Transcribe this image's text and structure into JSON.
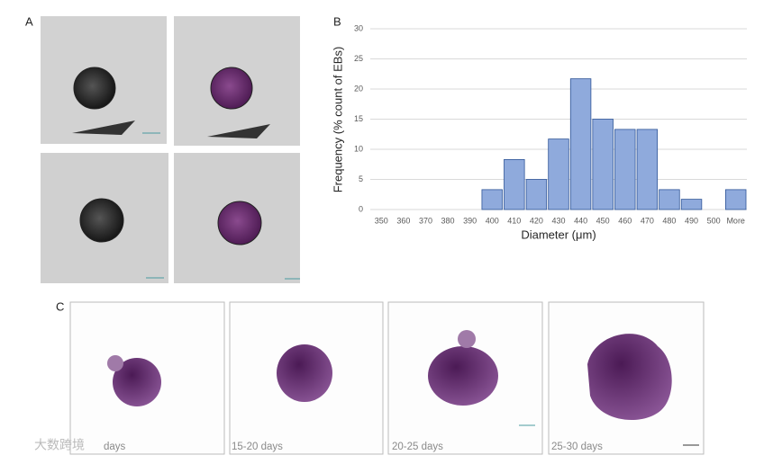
{
  "panel_labels": [
    "A",
    "B",
    "C"
  ],
  "captions": [
    "days",
    "15-20 days",
    "20-25 days",
    "25-30 days"
  ],
  "watermark": "大数跨境",
  "chart_data": {
    "type": "bar",
    "categories": [
      "350",
      "360",
      "370",
      "380",
      "390",
      "400",
      "410",
      "420",
      "430",
      "440",
      "450",
      "460",
      "470",
      "480",
      "490",
      "500",
      "More"
    ],
    "values": [
      0,
      0,
      0,
      0,
      0,
      3.3,
      8.3,
      5,
      11.7,
      21.7,
      15,
      13.3,
      13.3,
      3.3,
      1.7,
      0,
      3.3
    ],
    "color": "#8faadc",
    "xlabel": "Diameter (μm)",
    "ylabel": "Frequency (% count of EBs)",
    "ylim": [
      0,
      30
    ],
    "yticks": [
      0,
      5,
      10,
      15,
      20,
      25,
      30
    ],
    "grid": true
  }
}
